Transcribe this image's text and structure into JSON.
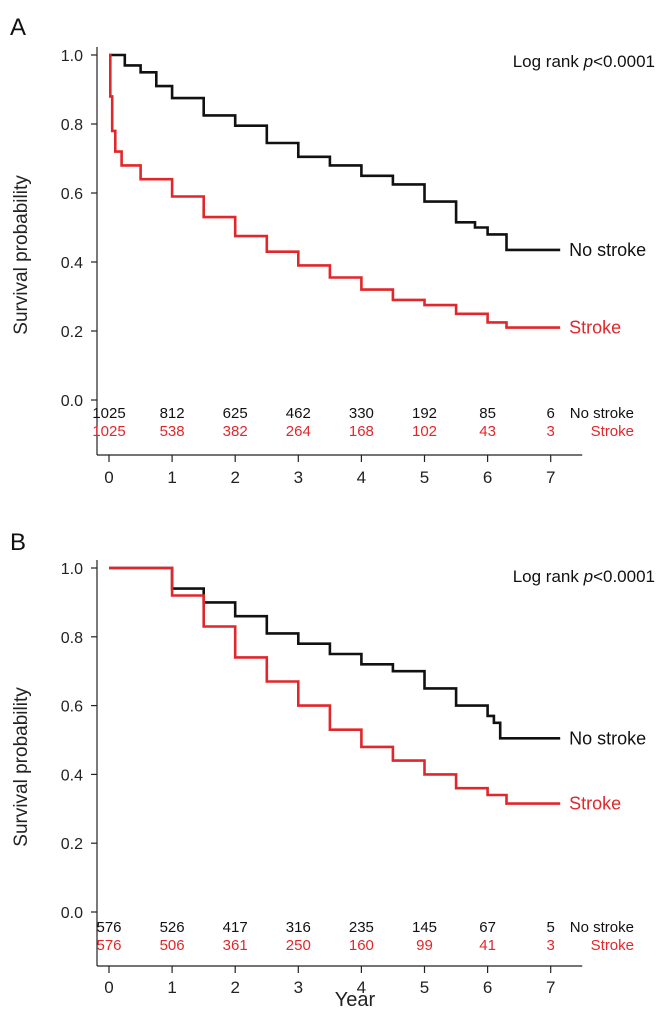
{
  "xlabel": "Year",
  "colors": {
    "no_stroke": "#111111",
    "stroke": "#e0272b",
    "axis": "#222222"
  },
  "chart_data": [
    {
      "type": "line",
      "panel_label": "A",
      "ylabel": "Survival probability",
      "ylim": [
        0,
        1.0
      ],
      "xlim": [
        0,
        7
      ],
      "y_ticks": [
        "0.0",
        "0.2",
        "0.4",
        "0.6",
        "0.8",
        "1.0"
      ],
      "x_ticks": [
        "0",
        "1",
        "2",
        "3",
        "4",
        "5",
        "6",
        "7"
      ],
      "annotation": {
        "prefix": "Log rank ",
        "italic": "p",
        "suffix": "<0.0001"
      },
      "grid": false,
      "series": [
        {
          "name": "No stroke",
          "color": "#111111",
          "x": [
            0,
            0.25,
            0.5,
            0.75,
            1,
            1.5,
            2,
            2.5,
            3,
            3.5,
            4,
            4.5,
            5,
            5.5,
            5.8,
            6,
            6.3,
            7.15
          ],
          "y": [
            1.0,
            0.97,
            0.95,
            0.91,
            0.875,
            0.825,
            0.795,
            0.745,
            0.705,
            0.68,
            0.65,
            0.625,
            0.575,
            0.515,
            0.5,
            0.48,
            0.435,
            0.435
          ]
        },
        {
          "name": "Stroke",
          "color": "#e0272b",
          "x": [
            0,
            0.02,
            0.05,
            0.1,
            0.2,
            0.5,
            1,
            1.5,
            2,
            2.5,
            3,
            3.5,
            4,
            4.5,
            5,
            5.5,
            6,
            6.3,
            7.15
          ],
          "y": [
            1.0,
            0.88,
            0.78,
            0.72,
            0.68,
            0.64,
            0.59,
            0.53,
            0.475,
            0.43,
            0.39,
            0.355,
            0.32,
            0.29,
            0.275,
            0.25,
            0.225,
            0.21,
            0.21
          ]
        }
      ],
      "risk_table": {
        "rows": [
          {
            "label": "No stroke",
            "color": "#111111",
            "values": [
              "1025",
              "812",
              "625",
              "462",
              "330",
              "192",
              "85",
              "6"
            ]
          },
          {
            "label": "Stroke",
            "color": "#e0272b",
            "values": [
              "1025",
              "538",
              "382",
              "264",
              "168",
              "102",
              "43",
              "3"
            ]
          }
        ]
      }
    },
    {
      "type": "line",
      "panel_label": "B",
      "ylabel": "Survival probability",
      "ylim": [
        0,
        1.0
      ],
      "xlim": [
        0,
        7
      ],
      "y_ticks": [
        "0.0",
        "0.2",
        "0.4",
        "0.6",
        "0.8",
        "1.0"
      ],
      "x_ticks": [
        "0",
        "1",
        "2",
        "3",
        "4",
        "5",
        "6",
        "7"
      ],
      "annotation": {
        "prefix": "Log rank ",
        "italic": "p",
        "suffix": "<0.0001"
      },
      "grid": false,
      "series": [
        {
          "name": "No stroke",
          "color": "#111111",
          "x": [
            0,
            0.5,
            1,
            1.5,
            2,
            2.5,
            3,
            3.5,
            4,
            4.5,
            5,
            5.5,
            6,
            6.1,
            6.2,
            7.15
          ],
          "y": [
            1.0,
            1.0,
            0.94,
            0.9,
            0.86,
            0.81,
            0.78,
            0.75,
            0.72,
            0.7,
            0.65,
            0.6,
            0.57,
            0.55,
            0.505,
            0.505
          ]
        },
        {
          "name": "Stroke",
          "color": "#e0272b",
          "x": [
            0,
            0.5,
            1,
            1.5,
            2,
            2.5,
            3,
            3.5,
            4,
            4.5,
            5,
            5.5,
            6,
            6.3,
            7.15
          ],
          "y": [
            1.0,
            1.0,
            0.92,
            0.83,
            0.74,
            0.67,
            0.6,
            0.53,
            0.48,
            0.44,
            0.4,
            0.36,
            0.34,
            0.315,
            0.315
          ]
        }
      ],
      "risk_table": {
        "rows": [
          {
            "label": "No stroke",
            "color": "#111111",
            "values": [
              "576",
              "526",
              "417",
              "316",
              "235",
              "145",
              "67",
              "5"
            ]
          },
          {
            "label": "Stroke",
            "color": "#e0272b",
            "values": [
              "576",
              "506",
              "361",
              "250",
              "160",
              "99",
              "41",
              "3"
            ]
          }
        ]
      }
    }
  ]
}
